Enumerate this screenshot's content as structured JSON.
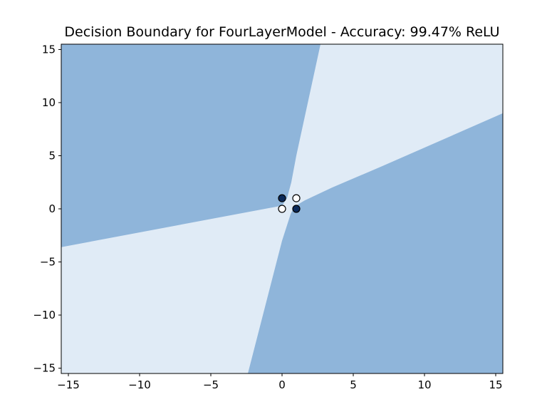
{
  "chart_data": {
    "type": "scatter",
    "title": "Decision Boundary for FourLayerModel - Accuracy: 99.47% ReLU",
    "xlabel": "",
    "ylabel": "",
    "xlim": [
      -15.5,
      15.5
    ],
    "ylim": [
      -15.5,
      15.5
    ],
    "x_ticks": [
      -15,
      -10,
      -5,
      0,
      5,
      10,
      15
    ],
    "y_ticks": [
      -15,
      -10,
      -5,
      0,
      5,
      10,
      15
    ],
    "x_tick_labels": [
      "−15",
      "−10",
      "−5",
      "0",
      "5",
      "10",
      "15"
    ],
    "y_tick_labels": [
      "−15",
      "−10",
      "−5",
      "0",
      "5",
      "10",
      "15"
    ],
    "grid": false,
    "legend": "none",
    "colors": {
      "class_0_region": "#e0ebf6",
      "class_1_region": "#8fb5da",
      "class_0_point": "#ffffff",
      "class_1_point": "#0b2a5a",
      "point_edge": "#000000"
    },
    "decision_regions": [
      {
        "class": 1,
        "polygon": [
          [
            -15.5,
            15.5
          ],
          [
            2.7,
            15.5
          ],
          [
            1.0,
            5.0
          ],
          [
            0.65,
            2.5
          ],
          [
            0.35,
            1.0
          ],
          [
            0.0,
            0.3
          ],
          [
            -15.5,
            -3.6
          ]
        ]
      },
      {
        "class": 1,
        "polygon": [
          [
            15.5,
            -15.5
          ],
          [
            15.5,
            9.0
          ],
          [
            7.0,
            4.0
          ],
          [
            3.5,
            2.0
          ],
          [
            1.6,
            0.8
          ],
          [
            0.85,
            0.2
          ],
          [
            0.6,
            -0.5
          ],
          [
            0.0,
            -3.0
          ],
          [
            -2.4,
            -15.5
          ]
        ]
      }
    ],
    "points": [
      {
        "x": 0,
        "y": 0,
        "class": 0
      },
      {
        "x": 0,
        "y": 1,
        "class": 1
      },
      {
        "x": 1,
        "y": 0,
        "class": 1
      },
      {
        "x": 1,
        "y": 1,
        "class": 0
      }
    ]
  }
}
